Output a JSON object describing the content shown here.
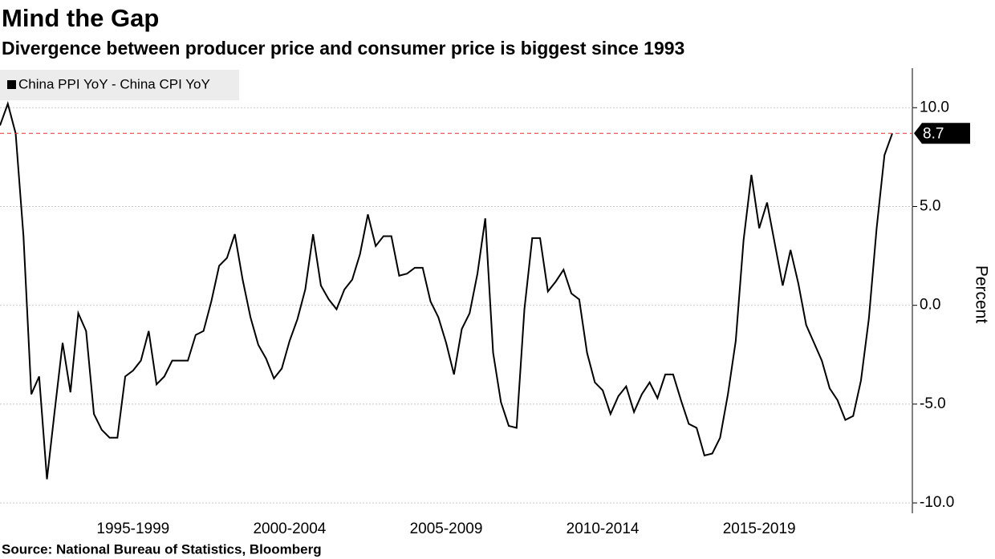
{
  "chart_data": {
    "type": "line",
    "title": "Mind the Gap",
    "subtitle": "Divergence between producer price and consumer price is biggest since 1993",
    "y_axis_label": "Percent",
    "source": "Source: National Bureau of Statistics, Bloomberg",
    "categories": [
      null,
      null,
      null,
      null,
      null,
      null,
      null,
      null,
      null,
      null,
      null,
      null,
      null,
      null,
      null,
      null,
      null,
      "1995-1999",
      null,
      null,
      null,
      null,
      null,
      null,
      null,
      null,
      null,
      null,
      null,
      null,
      null,
      null,
      null,
      null,
      null,
      null,
      null,
      "2000-2004",
      null,
      null,
      null,
      null,
      null,
      null,
      null,
      null,
      null,
      null,
      null,
      null,
      null,
      null,
      null,
      null,
      null,
      null,
      null,
      "2005-2009",
      null,
      null,
      null,
      null,
      null,
      null,
      null,
      null,
      null,
      null,
      null,
      null,
      null,
      null,
      null,
      null,
      null,
      null,
      null,
      "2010-2014",
      null,
      null,
      null,
      null,
      null,
      null,
      null,
      null,
      null,
      null,
      null,
      null,
      null,
      null,
      null,
      null,
      null,
      null,
      null,
      "2015-2019",
      null,
      null,
      null,
      null,
      null,
      null,
      null,
      null,
      null,
      null,
      null,
      null,
      null,
      null,
      null,
      null,
      null
    ],
    "series": [
      {
        "name": "China PPI YoY - China CPI YoY",
        "color": "#000000",
        "values": [
          9.1,
          10.2,
          8.7,
          3.5,
          -4.5,
          -3.6,
          -8.8,
          -5.3,
          -1.9,
          -4.4,
          -0.4,
          -1.3,
          -5.5,
          -6.3,
          -6.7,
          -6.7,
          -3.6,
          -3.3,
          -2.8,
          -1.3,
          -4.0,
          -3.6,
          -2.8,
          -2.8,
          -2.8,
          -1.5,
          -1.3,
          0.2,
          2.0,
          2.4,
          3.6,
          1.3,
          -0.6,
          -2.0,
          -2.7,
          -3.7,
          -3.2,
          -1.8,
          -0.7,
          0.8,
          3.6,
          1.0,
          0.3,
          -0.2,
          0.8,
          1.3,
          2.6,
          4.6,
          3.0,
          3.5,
          3.5,
          1.5,
          1.6,
          1.9,
          1.9,
          0.2,
          -0.6,
          -1.9,
          -3.5,
          -1.2,
          -0.4,
          1.6,
          4.4,
          -2.4,
          -4.9,
          -6.1,
          -6.2,
          -0.2,
          3.4,
          3.4,
          0.7,
          1.2,
          1.8,
          0.6,
          0.3,
          -2.4,
          -3.9,
          -4.3,
          -5.5,
          -4.6,
          -4.1,
          -5.4,
          -4.5,
          -3.9,
          -4.7,
          -3.5,
          -3.5,
          -4.8,
          -6.0,
          -6.2,
          -7.6,
          -7.5,
          -6.7,
          -4.5,
          -1.8,
          3.3,
          6.6,
          3.9,
          5.2,
          3.1,
          1.0,
          2.8,
          1.1,
          -1.0,
          -1.9,
          -2.8,
          -4.2,
          -4.8,
          -5.8,
          -5.6,
          -3.8,
          -0.7,
          3.9,
          7.6,
          8.7
        ],
        "value_labels": [
          null,
          null,
          null,
          null,
          null,
          null,
          null,
          null,
          null,
          null,
          null,
          null,
          null,
          null,
          null,
          null,
          null,
          null,
          null,
          null,
          null,
          null,
          null,
          null,
          null,
          null,
          null,
          null,
          null,
          null,
          null,
          null,
          null,
          null,
          null,
          null,
          null,
          null,
          null,
          null,
          null,
          null,
          null,
          null,
          null,
          null,
          null,
          null,
          null,
          null,
          null,
          null,
          null,
          null,
          null,
          null,
          null,
          null,
          null,
          null,
          null,
          null,
          null,
          null,
          null,
          null,
          null,
          null,
          null,
          null,
          null,
          null,
          null,
          null,
          null,
          null,
          null,
          null,
          null,
          null,
          null,
          null,
          null,
          null,
          null,
          null,
          null,
          null,
          null,
          null,
          null,
          null,
          null,
          null,
          null,
          null,
          null,
          null,
          null,
          null,
          null,
          null,
          null,
          null,
          null,
          null,
          null,
          null,
          null,
          null,
          null,
          null,
          null,
          null,
          "8.7"
        ]
      }
    ],
    "reference_line_color": "#e0303a",
    "ylim": [
      -10.2,
      12
    ],
    "yticks": [
      {
        "value": -10,
        "label": "-10.0"
      },
      {
        "value": -5,
        "label": "-5.0"
      },
      {
        "value": 0,
        "label": "0.0"
      },
      {
        "value": 5,
        "label": "5.0"
      },
      {
        "value": 10,
        "label": "10.0"
      }
    ],
    "grid": true,
    "legend": "top-left"
  }
}
